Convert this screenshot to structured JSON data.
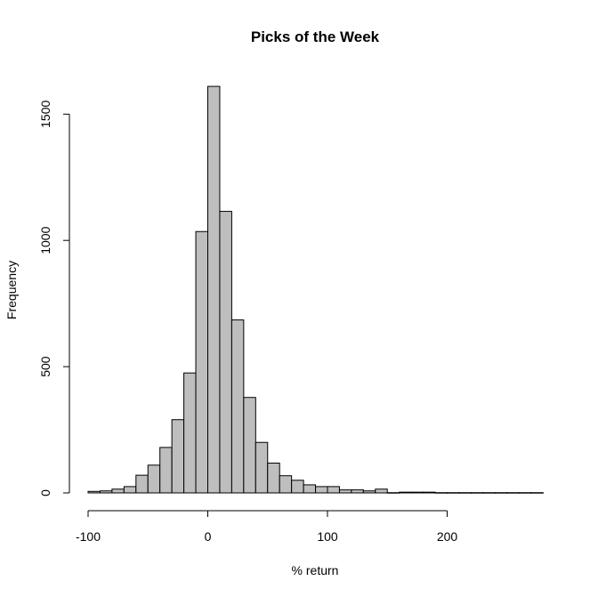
{
  "chart_data": {
    "type": "bar",
    "subtype": "histogram",
    "title": "Picks of the Week",
    "xlabel": "% return",
    "ylabel": "Frequency",
    "xlim": [
      -100,
      280
    ],
    "ylim": [
      0,
      1600
    ],
    "bin_width": 10,
    "bin_starts": [
      -100,
      -90,
      -80,
      -70,
      -60,
      -50,
      -40,
      -30,
      -20,
      -10,
      0,
      10,
      20,
      30,
      40,
      50,
      60,
      70,
      80,
      90,
      100,
      110,
      120,
      130,
      140,
      150,
      160,
      170,
      180,
      190,
      200,
      210,
      220,
      230,
      240,
      250,
      260,
      270
    ],
    "values": [
      6,
      8,
      15,
      25,
      70,
      110,
      180,
      290,
      475,
      1035,
      1610,
      1115,
      685,
      378,
      200,
      118,
      68,
      50,
      32,
      25,
      25,
      12,
      12,
      8,
      15,
      1,
      3,
      3,
      3,
      1,
      1,
      1,
      1,
      1,
      1,
      1,
      1,
      1
    ],
    "xticks": [
      -100,
      0,
      100,
      200
    ],
    "yticks": [
      0,
      500,
      1000,
      1500
    ],
    "bar_color": "#bebebe",
    "grid": false
  }
}
